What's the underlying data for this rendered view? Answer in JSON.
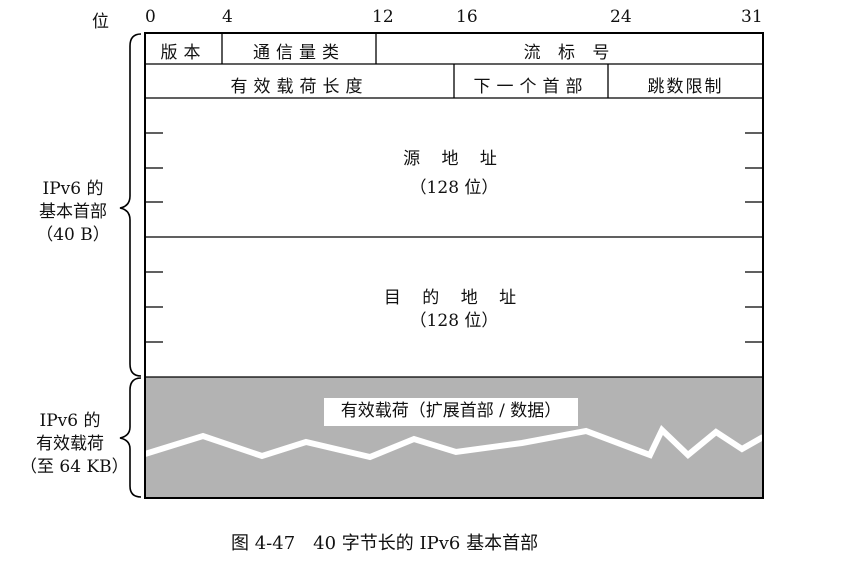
{
  "bit_ruler": {
    "unit_label": "位",
    "ticks": [
      "0",
      "4",
      "12",
      "16",
      "24",
      "31"
    ]
  },
  "header_fields": {
    "version": "版本",
    "traffic_class": "通信量类",
    "flow_label": "流 标 号",
    "payload_length": "有效载荷长度",
    "next_header": "下一个首部",
    "hop_limit": "跳数限制",
    "source_address": "源 地 址",
    "source_bits": "（128 位）",
    "dest_address": "目 的 地 址",
    "dest_bits": "（128 位）"
  },
  "payload": {
    "label": "有效载荷（扩展首部 / 数据）",
    "fill_color": "#b3b3b3"
  },
  "left_brackets": {
    "header_line1": "IPv6 的",
    "header_line2": "基本首部",
    "header_line3": "（40 B）",
    "payload_line1": "IPv6 的",
    "payload_line2": "有效载荷",
    "payload_line3": "（至 64 KB）"
  },
  "caption": "图 4-47　40 字节长的 IPv6 基本首部"
}
